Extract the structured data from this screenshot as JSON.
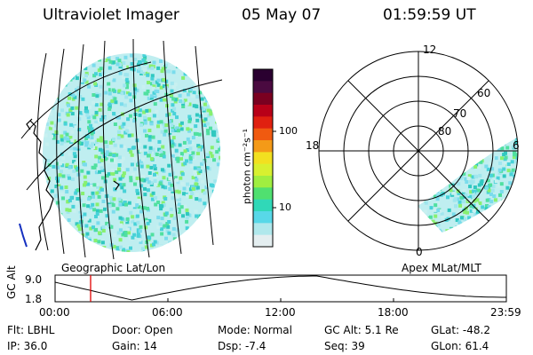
{
  "header": {
    "instrument": "Ultraviolet Imager",
    "date": "05 May 07",
    "time": "01:59:59 UT"
  },
  "colorbar": {
    "unit_label": "photon cm⁻²s⁻¹",
    "tick_100": "100",
    "tick_10": "10",
    "colors_top_to_bottom": [
      "#2a0030",
      "#4a0a40",
      "#7a0020",
      "#b80018",
      "#e02010",
      "#f05a10",
      "#f49a18",
      "#f2e020",
      "#d8f030",
      "#a0ee40",
      "#50e070",
      "#30d8b8",
      "#58d8e8",
      "#b0e8ec",
      "#e4eef0"
    ]
  },
  "left_panel": {
    "caption": "Geographic Lat/Lon",
    "disk_colors": [
      "#c8f0f0",
      "#a0e6ee",
      "#7adcec",
      "#48d2d8",
      "#30c8c0",
      "#50e0a0",
      "#88f070"
    ]
  },
  "right_panel": {
    "caption": "Apex MLat/MLT",
    "mlt_12": "12",
    "mlt_18": "18",
    "mlt_6": "6",
    "mlt_0": "0",
    "mlat_60": "60",
    "mlat_70": "70",
    "mlat_80": "80"
  },
  "timeline": {
    "axis_label": "GC Alt",
    "y_max": "9.0",
    "y_min": "1.8",
    "ticks": [
      "00:00",
      "06:00",
      "12:00",
      "18:00",
      "23:59"
    ],
    "marker_color": "#e00000"
  },
  "footer": {
    "flt": "Flt: LBHL",
    "ip": "IP: 36.0",
    "door": "Door: Open",
    "gain": "Gain: 14",
    "mode": "Mode: Normal",
    "dsp": "Dsp:    -7.4",
    "gc_alt": "GC Alt: 5.1 Re",
    "seq": "Seq: 39",
    "glat": "GLat: -48.2",
    "glon": "GLon:  61.4"
  }
}
